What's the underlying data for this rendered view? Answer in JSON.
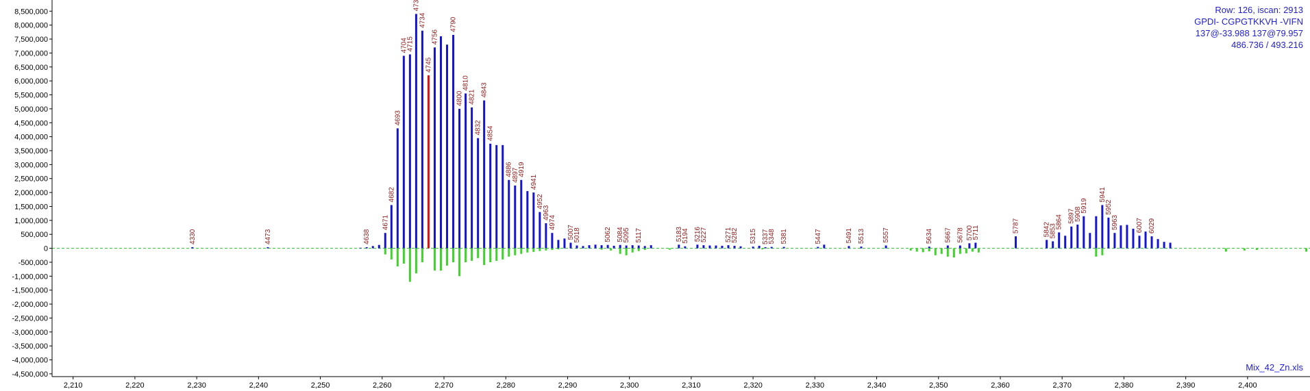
{
  "info": {
    "row_scan": "Row: 126, iscan: 2913",
    "peptide": "GPDI- CGPGTKKVH -VIFN",
    "mods": "137@-33.988 137@79.957",
    "ratio": "486.736 / 493.216"
  },
  "file_name": "Mix_42_Zn.xls",
  "colors": {
    "positive": "#1414d2",
    "highlight": "#e01010",
    "negative": "#3ed42a",
    "label": "#8b1a1a",
    "baseline": "#2fbf2f",
    "axis": "#000000"
  },
  "chart_data": {
    "type": "bar",
    "x_ticks": [
      2210,
      2220,
      2230,
      2240,
      2250,
      2260,
      2270,
      2280,
      2290,
      2300,
      2310,
      2320,
      2330,
      2340,
      2350,
      2360,
      2370,
      2380,
      2390,
      2400
    ],
    "y_ticks": [
      -4500000,
      -4000000,
      -3500000,
      -3000000,
      -2500000,
      -2000000,
      -1500000,
      -1000000,
      -500000,
      0,
      500000,
      1000000,
      1500000,
      2000000,
      2500000,
      3000000,
      3500000,
      4000000,
      4500000,
      5000000,
      5500000,
      6000000,
      6500000,
      7000000,
      7500000,
      8000000,
      8500000
    ],
    "y_tick_labels": [
      "-4,500,000",
      "-4,000,000",
      "-3,500,000",
      "-3,000,000",
      "-2,500,000",
      "-2,000,000",
      "-1,500,000",
      "-1,000,000",
      "-500,000",
      "0",
      "500,000",
      "1,000,000",
      "1,500,000",
      "2,000,000",
      "2,500,000",
      "3,000,000",
      "3,500,000",
      "4,000,000",
      "4,500,000",
      "5,000,000",
      "5,500,000",
      "6,000,000",
      "6,500,000",
      "7,000,000",
      "7,500,000",
      "8,000,000",
      "8,500,000"
    ],
    "x_tick_labels": [
      "2,210",
      "2,220",
      "2,230",
      "2,240",
      "2,250",
      "2,260",
      "2,270",
      "2,280",
      "2,290",
      "2,300",
      "2,310",
      "2,320",
      "2,330",
      "2,340",
      "2,350",
      "2,360",
      "2,370",
      "2,380",
      "2,390",
      "2,400"
    ],
    "xlim": [
      2206.6,
      2410.1
    ],
    "ylim": [
      -4600000,
      8900000
    ],
    "positive_series": [
      {
        "x": 2229.3,
        "y": 40000,
        "label": "4330"
      },
      {
        "x": 2241.5,
        "y": 40000,
        "label": "4473"
      },
      {
        "x": 2256.5,
        "y": 20000
      },
      {
        "x": 2257.5,
        "y": 40000,
        "label": "4638"
      },
      {
        "x": 2258.5,
        "y": 80000
      },
      {
        "x": 2259.5,
        "y": 120000
      },
      {
        "x": 2260.5,
        "y": 550000,
        "label": "4671"
      },
      {
        "x": 2261.5,
        "y": 1550000,
        "label": "4682"
      },
      {
        "x": 2262.5,
        "y": 4300000,
        "label": "4693"
      },
      {
        "x": 2263.5,
        "y": 6900000,
        "label": "4704"
      },
      {
        "x": 2264.5,
        "y": 6950000,
        "label": "4715"
      },
      {
        "x": 2265.5,
        "y": 8400000,
        "label": "4734"
      },
      {
        "x": 2266.5,
        "y": 7800000,
        "label": "4734"
      },
      {
        "x": 2267.5,
        "y": 6200000,
        "label": "4745",
        "highlight": true
      },
      {
        "x": 2268.5,
        "y": 7200000,
        "label": "4756"
      },
      {
        "x": 2269.5,
        "y": 7600000
      },
      {
        "x": 2270.5,
        "y": 7300000
      },
      {
        "x": 2271.5,
        "y": 7650000,
        "label": "4790"
      },
      {
        "x": 2272.5,
        "y": 5000000,
        "label": "4800"
      },
      {
        "x": 2273.5,
        "y": 5550000,
        "label": "4810"
      },
      {
        "x": 2274.5,
        "y": 5050000,
        "label": "4821"
      },
      {
        "x": 2275.5,
        "y": 3950000,
        "label": "4832"
      },
      {
        "x": 2276.5,
        "y": 5300000,
        "label": "4843"
      },
      {
        "x": 2277.5,
        "y": 3750000,
        "label": "4854"
      },
      {
        "x": 2278.5,
        "y": 3700000
      },
      {
        "x": 2279.5,
        "y": 3700000
      },
      {
        "x": 2280.5,
        "y": 2450000,
        "label": "4886"
      },
      {
        "x": 2281.5,
        "y": 2250000,
        "label": "4897"
      },
      {
        "x": 2282.5,
        "y": 2450000,
        "label": "4919"
      },
      {
        "x": 2283.5,
        "y": 2050000
      },
      {
        "x": 2284.5,
        "y": 2000000,
        "label": "4941"
      },
      {
        "x": 2285.5,
        "y": 1300000,
        "label": "4952"
      },
      {
        "x": 2286.5,
        "y": 900000,
        "label": "4963"
      },
      {
        "x": 2287.5,
        "y": 550000,
        "label": "4974"
      },
      {
        "x": 2288.5,
        "y": 300000
      },
      {
        "x": 2289.5,
        "y": 350000
      },
      {
        "x": 2290.5,
        "y": 200000,
        "label": "5007"
      },
      {
        "x": 2291.5,
        "y": 100000,
        "label": "5018"
      },
      {
        "x": 2292.5,
        "y": 80000
      },
      {
        "x": 2293.5,
        "y": 110000
      },
      {
        "x": 2294.5,
        "y": 130000
      },
      {
        "x": 2295.5,
        "y": 110000
      },
      {
        "x": 2296.5,
        "y": 120000,
        "label": "5062"
      },
      {
        "x": 2297.5,
        "y": 90000
      },
      {
        "x": 2298.5,
        "y": 120000,
        "label": "5084"
      },
      {
        "x": 2299.5,
        "y": 100000,
        "label": "5095"
      },
      {
        "x": 2300.5,
        "y": 110000
      },
      {
        "x": 2301.5,
        "y": 100000,
        "label": "5117"
      },
      {
        "x": 2302.5,
        "y": 80000
      },
      {
        "x": 2303.5,
        "y": 110000
      },
      {
        "x": 2308.0,
        "y": 130000,
        "label": "5183"
      },
      {
        "x": 2309.0,
        "y": 70000,
        "label": "5194"
      },
      {
        "x": 2311.0,
        "y": 130000,
        "label": "5216"
      },
      {
        "x": 2312.0,
        "y": 110000,
        "label": "5227"
      },
      {
        "x": 2313.0,
        "y": 100000
      },
      {
        "x": 2314.0,
        "y": 100000
      },
      {
        "x": 2315.0,
        "y": 90000
      },
      {
        "x": 2316.0,
        "y": 110000,
        "label": "5271"
      },
      {
        "x": 2317.0,
        "y": 90000,
        "label": "5282"
      },
      {
        "x": 2318.0,
        "y": 70000
      },
      {
        "x": 2320.0,
        "y": 60000,
        "label": "5315"
      },
      {
        "x": 2321.0,
        "y": 90000
      },
      {
        "x": 2322.0,
        "y": 40000,
        "label": "5337"
      },
      {
        "x": 2323.0,
        "y": 50000,
        "label": "5348"
      },
      {
        "x": 2325.0,
        "y": 50000,
        "label": "5381"
      },
      {
        "x": 2330.5,
        "y": 50000,
        "label": "5447"
      },
      {
        "x": 2331.5,
        "y": 130000
      },
      {
        "x": 2335.5,
        "y": 80000,
        "label": "5491"
      },
      {
        "x": 2337.5,
        "y": 60000,
        "label": "5513"
      },
      {
        "x": 2341.5,
        "y": 100000,
        "label": "5557"
      },
      {
        "x": 2348.5,
        "y": 60000,
        "label": "5634"
      },
      {
        "x": 2351.5,
        "y": 100000,
        "label": "5667"
      },
      {
        "x": 2353.5,
        "y": 100000,
        "label": "5678"
      },
      {
        "x": 2355.0,
        "y": 180000,
        "label": "5700"
      },
      {
        "x": 2356.0,
        "y": 200000,
        "label": "5711"
      },
      {
        "x": 2362.5,
        "y": 430000,
        "label": "5787"
      },
      {
        "x": 2367.5,
        "y": 300000,
        "label": "5842"
      },
      {
        "x": 2368.5,
        "y": 250000,
        "label": "5853"
      },
      {
        "x": 2369.5,
        "y": 570000,
        "label": "5864"
      },
      {
        "x": 2370.5,
        "y": 450000
      },
      {
        "x": 2371.5,
        "y": 780000,
        "label": "5897"
      },
      {
        "x": 2372.5,
        "y": 850000,
        "label": "5908"
      },
      {
        "x": 2373.5,
        "y": 1150000,
        "label": "5919"
      },
      {
        "x": 2374.5,
        "y": 550000
      },
      {
        "x": 2375.5,
        "y": 1150000
      },
      {
        "x": 2376.5,
        "y": 1550000,
        "label": "5941"
      },
      {
        "x": 2377.5,
        "y": 1100000,
        "label": "5952"
      },
      {
        "x": 2378.5,
        "y": 550000,
        "label": "5963"
      },
      {
        "x": 2379.5,
        "y": 820000
      },
      {
        "x": 2380.5,
        "y": 840000
      },
      {
        "x": 2381.5,
        "y": 700000
      },
      {
        "x": 2382.5,
        "y": 450000,
        "label": "6007"
      },
      {
        "x": 2383.5,
        "y": 600000
      },
      {
        "x": 2384.5,
        "y": 430000,
        "label": "6029"
      },
      {
        "x": 2385.5,
        "y": 330000
      },
      {
        "x": 2386.5,
        "y": 230000
      },
      {
        "x": 2387.5,
        "y": 200000
      }
    ],
    "negative_series": [
      {
        "x": 2260.5,
        "y": -220000
      },
      {
        "x": 2261.5,
        "y": -400000
      },
      {
        "x": 2262.5,
        "y": -650000
      },
      {
        "x": 2263.5,
        "y": -550000
      },
      {
        "x": 2264.5,
        "y": -1200000
      },
      {
        "x": 2265.5,
        "y": -900000
      },
      {
        "x": 2266.5,
        "y": -500000
      },
      {
        "x": 2268.5,
        "y": -800000
      },
      {
        "x": 2269.5,
        "y": -800000
      },
      {
        "x": 2270.5,
        "y": -620000
      },
      {
        "x": 2271.5,
        "y": -500000
      },
      {
        "x": 2272.5,
        "y": -1000000
      },
      {
        "x": 2273.5,
        "y": -500000
      },
      {
        "x": 2274.5,
        "y": -450000
      },
      {
        "x": 2275.5,
        "y": -350000
      },
      {
        "x": 2276.5,
        "y": -600000
      },
      {
        "x": 2277.5,
        "y": -500000
      },
      {
        "x": 2278.5,
        "y": -450000
      },
      {
        "x": 2279.5,
        "y": -400000
      },
      {
        "x": 2280.5,
        "y": -300000
      },
      {
        "x": 2281.5,
        "y": -250000
      },
      {
        "x": 2282.5,
        "y": -200000
      },
      {
        "x": 2283.5,
        "y": -150000
      },
      {
        "x": 2284.5,
        "y": -130000
      },
      {
        "x": 2285.5,
        "y": -100000
      },
      {
        "x": 2286.5,
        "y": -80000
      },
      {
        "x": 2287.5,
        "y": -60000
      },
      {
        "x": 2288.5,
        "y": -40000
      },
      {
        "x": 2295.5,
        "y": -50000
      },
      {
        "x": 2297.0,
        "y": -80000
      },
      {
        "x": 2298.5,
        "y": -200000
      },
      {
        "x": 2299.5,
        "y": -250000
      },
      {
        "x": 2300.5,
        "y": -150000
      },
      {
        "x": 2301.5,
        "y": -100000
      },
      {
        "x": 2302.5,
        "y": -60000
      },
      {
        "x": 2306.5,
        "y": -50000
      },
      {
        "x": 2321.5,
        "y": -40000
      },
      {
        "x": 2345.5,
        "y": -80000
      },
      {
        "x": 2346.5,
        "y": -120000
      },
      {
        "x": 2347.5,
        "y": -140000
      },
      {
        "x": 2348.5,
        "y": -110000
      },
      {
        "x": 2349.5,
        "y": -250000
      },
      {
        "x": 2350.5,
        "y": -200000
      },
      {
        "x": 2351.5,
        "y": -300000
      },
      {
        "x": 2352.5,
        "y": -330000
      },
      {
        "x": 2353.5,
        "y": -200000
      },
      {
        "x": 2354.5,
        "y": -180000
      },
      {
        "x": 2355.5,
        "y": -120000
      },
      {
        "x": 2356.5,
        "y": -150000
      },
      {
        "x": 2375.5,
        "y": -300000
      },
      {
        "x": 2376.5,
        "y": -250000
      },
      {
        "x": 2396.5,
        "y": -120000
      },
      {
        "x": 2399.5,
        "y": -80000
      },
      {
        "x": 2401.5,
        "y": -60000
      },
      {
        "x": 2409.5,
        "y": -120000
      }
    ]
  }
}
